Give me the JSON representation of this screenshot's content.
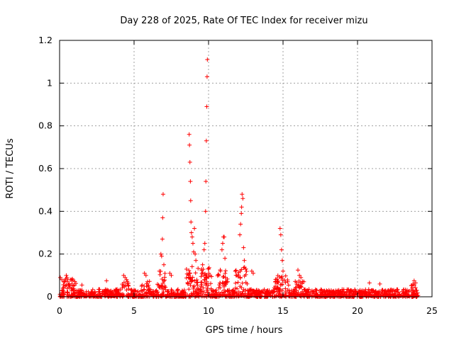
{
  "chart_data": {
    "type": "scatter",
    "title": "Day 228 of 2025, Rate Of TEC Index for receiver mizu",
    "xlabel": "GPS time / hours",
    "ylabel": "ROTI / TECUs",
    "xlim": [
      0,
      25
    ],
    "ylim": [
      0,
      1.2
    ],
    "x_ticks": [
      "0",
      "5",
      "10",
      "15",
      "20",
      "25"
    ],
    "y_ticks": [
      "0",
      "0.2",
      "0.4",
      "0.6",
      "0.8",
      "1",
      "1.2"
    ],
    "grid": true,
    "marker": "plus",
    "color": "#ff0000",
    "series": [
      {
        "values": [
          [
            0.05,
            0.09
          ],
          [
            0.15,
            0.08
          ],
          [
            0.3,
            0.07
          ],
          [
            0.45,
            0.1
          ],
          [
            0.5,
            0.09
          ],
          [
            0.65,
            0.06
          ],
          [
            0.8,
            0.08
          ],
          [
            1.5,
            0.055
          ],
          [
            3.15,
            0.075
          ],
          [
            4.3,
            0.1
          ],
          [
            4.4,
            0.09
          ],
          [
            4.5,
            0.08
          ],
          [
            5.7,
            0.11
          ],
          [
            5.8,
            0.1
          ],
          [
            6.7,
            0.12
          ],
          [
            6.8,
            0.2
          ],
          [
            6.85,
            0.19
          ],
          [
            6.9,
            0.27
          ],
          [
            6.92,
            0.37
          ],
          [
            6.95,
            0.48
          ],
          [
            7.0,
            0.15
          ],
          [
            7.4,
            0.11
          ],
          [
            7.5,
            0.1
          ],
          [
            8.7,
            0.76
          ],
          [
            8.72,
            0.71
          ],
          [
            8.75,
            0.63
          ],
          [
            8.78,
            0.54
          ],
          [
            8.8,
            0.45
          ],
          [
            8.82,
            0.35
          ],
          [
            8.85,
            0.3
          ],
          [
            8.9,
            0.28
          ],
          [
            8.95,
            0.25
          ],
          [
            9.0,
            0.21
          ],
          [
            9.05,
            0.32
          ],
          [
            9.1,
            0.2
          ],
          [
            9.15,
            0.17
          ],
          [
            9.6,
            0.15
          ],
          [
            9.7,
            0.22
          ],
          [
            9.75,
            0.25
          ],
          [
            9.8,
            0.4
          ],
          [
            9.82,
            0.54
          ],
          [
            9.85,
            0.73
          ],
          [
            9.88,
            0.89
          ],
          [
            9.9,
            1.03
          ],
          [
            9.92,
            1.11
          ],
          [
            10.0,
            0.13
          ],
          [
            10.8,
            0.12
          ],
          [
            10.9,
            0.22
          ],
          [
            10.95,
            0.25
          ],
          [
            11.0,
            0.28
          ],
          [
            11.05,
            0.28
          ],
          [
            11.1,
            0.18
          ],
          [
            11.8,
            0.12
          ],
          [
            11.9,
            0.1
          ],
          [
            12.1,
            0.29
          ],
          [
            12.15,
            0.34
          ],
          [
            12.2,
            0.39
          ],
          [
            12.22,
            0.42
          ],
          [
            12.25,
            0.48
          ],
          [
            12.3,
            0.46
          ],
          [
            12.35,
            0.23
          ],
          [
            12.4,
            0.17
          ],
          [
            12.5,
            0.13
          ],
          [
            12.9,
            0.12
          ],
          [
            13.0,
            0.11
          ],
          [
            14.8,
            0.32
          ],
          [
            14.85,
            0.29
          ],
          [
            14.9,
            0.22
          ],
          [
            14.95,
            0.17
          ],
          [
            15.0,
            0.12
          ],
          [
            16.0,
            0.125
          ],
          [
            16.1,
            0.1
          ],
          [
            16.2,
            0.09
          ],
          [
            20.8,
            0.065
          ],
          [
            21.5,
            0.06
          ],
          [
            23.8,
            0.075
          ],
          [
            23.9,
            0.065
          ]
        ]
      }
    ]
  }
}
